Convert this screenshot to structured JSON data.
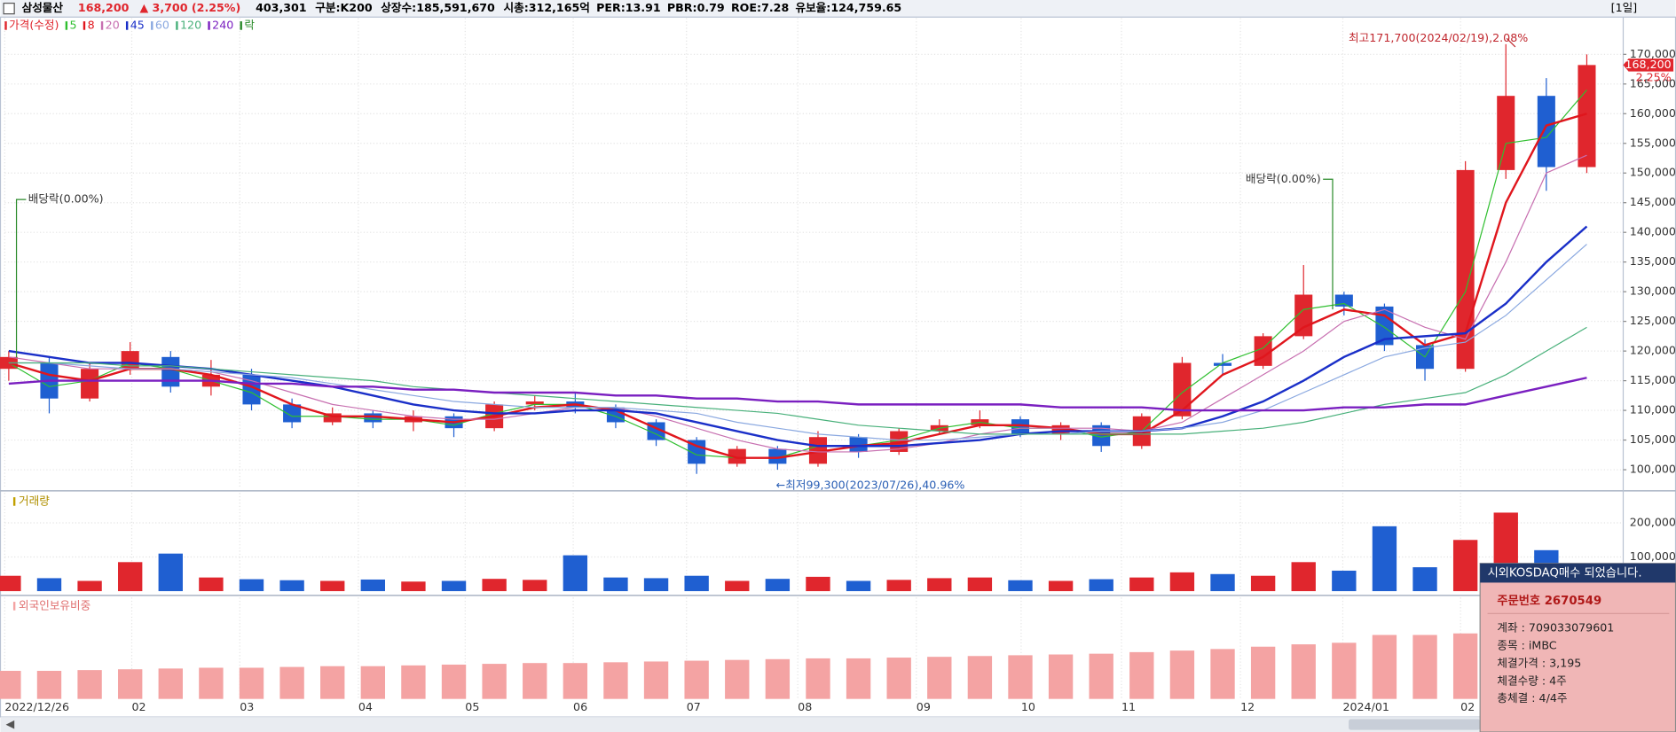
{
  "header": {
    "name": "삼성물산",
    "price": "168,200",
    "change": "▲ 3,700 (2.25%)",
    "volume": "403,301",
    "sector": "구분:K200",
    "shares": "상장수:185,591,670",
    "market_cap": "시총:312,165억",
    "per": "PER:13.91",
    "pbr": "PBR:0.79",
    "roe": "ROE:7.28",
    "reserve": "유보율:124,759.65",
    "period": "[1일]"
  },
  "chart_data": [
    {
      "type": "candlestick",
      "legend_title": "가격(수정)",
      "dividend_legend": "락",
      "up_color": "#e0262d",
      "down_color": "#1f5fd1",
      "open": [
        117000,
        118000,
        112000,
        117000,
        119000,
        114000,
        116000,
        111000,
        108000,
        109500,
        108000,
        109000,
        107000,
        111000,
        111500,
        110500,
        108000,
        105000,
        101000,
        103500,
        101000,
        105500,
        103000,
        106500,
        107500,
        108500,
        106000,
        107500,
        104000,
        109000,
        118000,
        117500,
        122500,
        129500,
        127500,
        121000,
        117000,
        150500,
        163000,
        151000
      ],
      "high": [
        120000,
        119000,
        118000,
        121500,
        120000,
        118500,
        117000,
        112000,
        110500,
        110000,
        110000,
        109500,
        111500,
        112500,
        113000,
        111000,
        108500,
        105500,
        104000,
        104000,
        106500,
        106000,
        107000,
        108500,
        110000,
        109000,
        108000,
        108000,
        109500,
        119000,
        119500,
        123000,
        134500,
        130000,
        128000,
        122000,
        152000,
        171700,
        166000,
        170000
      ],
      "low": [
        115000,
        109500,
        111500,
        116000,
        113000,
        112500,
        110000,
        107000,
        107500,
        107000,
        106500,
        105500,
        106500,
        110000,
        109500,
        107000,
        104000,
        99300,
        100500,
        100000,
        100500,
        102000,
        102500,
        106000,
        107000,
        105500,
        105000,
        103000,
        103500,
        108500,
        116000,
        117000,
        122000,
        126000,
        120000,
        115000,
        116500,
        149000,
        147000,
        150000
      ],
      "close": [
        119000,
        112000,
        117000,
        120000,
        114000,
        116000,
        111000,
        108000,
        109500,
        108000,
        109000,
        107000,
        111000,
        111500,
        110500,
        108000,
        105000,
        101000,
        103500,
        101000,
        105500,
        103000,
        106500,
        107500,
        108500,
        106000,
        107500,
        104000,
        109000,
        118000,
        117500,
        122500,
        129500,
        127500,
        121000,
        117000,
        150500,
        163000,
        151000,
        168200
      ],
      "series": [
        {
          "name": "5",
          "color": "#2fbf2f",
          "width": 1,
          "values": [
            118000,
            114000,
            115000,
            118000,
            117000,
            115000,
            113000,
            109000,
            109000,
            108500,
            108500,
            107500,
            109500,
            111000,
            111000,
            109000,
            106000,
            102500,
            102000,
            102000,
            104000,
            104000,
            105000,
            107000,
            108000,
            107000,
            107000,
            105500,
            106500,
            113000,
            118000,
            120500,
            127000,
            128000,
            124000,
            119000,
            130000,
            155000,
            156000,
            164000
          ]
        },
        {
          "name": "8",
          "color": "#e0161d",
          "width": 2,
          "values": [
            118000,
            116000,
            115000,
            117000,
            117000,
            116000,
            114000,
            111000,
            109000,
            109000,
            108500,
            108000,
            109000,
            110500,
            111000,
            110000,
            107000,
            104000,
            102000,
            102000,
            103000,
            104000,
            104500,
            106000,
            107500,
            107500,
            107000,
            106000,
            106000,
            110000,
            116000,
            119000,
            124000,
            127000,
            126000,
            121000,
            123000,
            145000,
            158000,
            160000
          ]
        },
        {
          "name": "20",
          "color": "#c76fb0",
          "width": 1,
          "values": [
            119000,
            118000,
            117000,
            117000,
            117000,
            116500,
            115000,
            113000,
            111000,
            110000,
            109000,
            108500,
            108500,
            109500,
            110500,
            110500,
            109000,
            107000,
            105000,
            103500,
            103000,
            103000,
            103500,
            104500,
            106000,
            107000,
            107000,
            107000,
            106500,
            108000,
            112000,
            116000,
            120000,
            125000,
            127000,
            124000,
            122000,
            135000,
            150000,
            153000
          ]
        },
        {
          "name": "45",
          "color": "#1a2fc8",
          "width": 2,
          "values": [
            120000,
            119000,
            118000,
            118000,
            117500,
            117000,
            116000,
            115000,
            114000,
            112500,
            111000,
            110000,
            109500,
            109500,
            110000,
            110000,
            109500,
            108000,
            106500,
            105000,
            104000,
            104000,
            104000,
            104500,
            105000,
            106000,
            106500,
            106500,
            106500,
            107000,
            109000,
            111500,
            115000,
            119000,
            122000,
            122500,
            123000,
            128000,
            135000,
            141000
          ]
        },
        {
          "name": "60",
          "color": "#8aa8e0",
          "width": 1,
          "values": [
            118000,
            118000,
            117500,
            117000,
            117000,
            116500,
            116000,
            115500,
            114500,
            113500,
            112500,
            111500,
            111000,
            110500,
            110500,
            110500,
            110000,
            109500,
            108000,
            107000,
            106000,
            105500,
            105000,
            105000,
            105500,
            106000,
            106000,
            106500,
            106500,
            107000,
            108000,
            110000,
            113000,
            116000,
            119000,
            120500,
            121500,
            126000,
            132000,
            138000
          ]
        },
        {
          "name": "120",
          "color": "#48b07a",
          "width": 1,
          "values": [
            118000,
            118000,
            118000,
            117500,
            117500,
            117000,
            116500,
            116000,
            115500,
            115000,
            114000,
            113500,
            113000,
            112500,
            112000,
            111500,
            111000,
            110500,
            110000,
            109500,
            108500,
            107500,
            107000,
            106500,
            106000,
            106000,
            106000,
            106000,
            106000,
            106000,
            106500,
            107000,
            108000,
            109500,
            111000,
            112000,
            113000,
            116000,
            120000,
            124000
          ]
        },
        {
          "name": "240",
          "color": "#7a1fc0",
          "width": 2,
          "values": [
            114500,
            115000,
            115000,
            115000,
            115000,
            115000,
            114500,
            114500,
            114000,
            114000,
            113500,
            113500,
            113000,
            113000,
            113000,
            112500,
            112500,
            112000,
            112000,
            111500,
            111500,
            111000,
            111000,
            111000,
            111000,
            111000,
            110500,
            110500,
            110500,
            110000,
            110000,
            110000,
            110000,
            110500,
            110500,
            111000,
            111000,
            112500,
            114000,
            115500
          ]
        }
      ],
      "xlim": [
        -0.1,
        39.9
      ],
      "xticks": [
        {
          "value": -0.1,
          "label": "2022/12/26"
        },
        {
          "value": 3.04,
          "label": "02"
        },
        {
          "value": 5.71,
          "label": "03"
        },
        {
          "value": 8.64,
          "label": "04"
        },
        {
          "value": 11.28,
          "label": "05"
        },
        {
          "value": 13.95,
          "label": "06"
        },
        {
          "value": 16.75,
          "label": "07"
        },
        {
          "value": 19.5,
          "label": "08"
        },
        {
          "value": 22.43,
          "label": "09"
        },
        {
          "value": 25.02,
          "label": "10"
        },
        {
          "value": 27.5,
          "label": "11"
        },
        {
          "value": 30.44,
          "label": "12"
        },
        {
          "value": 32.97,
          "label": "2024/01"
        },
        {
          "value": 35.88,
          "label": "02"
        }
      ],
      "ylim": [
        96800,
        176100
      ],
      "yticks": [
        {
          "value": 100000,
          "label": "100,000"
        },
        {
          "value": 105000,
          "label": "105,000"
        },
        {
          "value": 110000,
          "label": "110,000"
        },
        {
          "value": 115000,
          "label": "115,000"
        },
        {
          "value": 120000,
          "label": "120,000"
        },
        {
          "value": 125000,
          "label": "125,000"
        },
        {
          "value": 130000,
          "label": "130,000"
        },
        {
          "value": 135000,
          "label": "135,000"
        },
        {
          "value": 140000,
          "label": "140,000"
        },
        {
          "value": 145000,
          "label": "145,000"
        },
        {
          "value": 150000,
          "label": "150,000"
        },
        {
          "value": 155000,
          "label": "155,000"
        },
        {
          "value": 160000,
          "label": "160,000"
        },
        {
          "value": 165000,
          "label": "165,000"
        },
        {
          "value": 170000,
          "label": "170,000"
        }
      ],
      "annotations": {
        "high": "최고171,700(2024/02/19),2.08%",
        "low": "←최저99,300(2023/07/26),40.96%",
        "dividend_1": "배당락(0.00%)",
        "dividend_2": "배당락(0.00%)",
        "last_price": "168,200",
        "last_change": "2.25%"
      }
    },
    {
      "type": "bar",
      "title": "거래량",
      "values": [
        45000,
        38000,
        30000,
        85000,
        110000,
        40000,
        35000,
        32000,
        30000,
        34000,
        28000,
        30000,
        36000,
        33000,
        105000,
        40000,
        38000,
        45000,
        30000,
        36000,
        42000,
        30000,
        33000,
        38000,
        40000,
        32000,
        30000,
        35000,
        40000,
        55000,
        50000,
        45000,
        85000,
        60000,
        190000,
        70000,
        150000,
        230000,
        120000,
        60000
      ],
      "ylim": [
        0,
        287500
      ],
      "yticks": [
        {
          "value": 100000,
          "label": "100,000"
        },
        {
          "value": 200000,
          "label": "200,000"
        }
      ]
    },
    {
      "type": "bar",
      "title": "외국인보유비중",
      "color": "#f4a3a3",
      "values": [
        18.3,
        18.3,
        18.35,
        18.4,
        18.45,
        18.5,
        18.5,
        18.55,
        18.6,
        18.6,
        18.65,
        18.7,
        18.75,
        18.8,
        18.8,
        18.85,
        18.9,
        18.95,
        19.0,
        19.05,
        19.1,
        19.1,
        19.15,
        19.2,
        19.25,
        19.3,
        19.35,
        19.4,
        19.5,
        19.6,
        19.7,
        19.85,
        20.0,
        20.1,
        20.6,
        20.6,
        20.7,
        21.1,
        21.4,
        21.6
      ],
      "ylim": [
        16.5,
        23
      ]
    }
  ],
  "popup": {
    "title": "시외KOSDAQ매수 되었습니다.",
    "order": "주문번호 2670549",
    "lines": [
      "계좌 : 709033079601",
      "종목 : iMBC",
      "체결가격 : 3,195",
      "체결수량 : 4주",
      "총체결 : 4/4주"
    ]
  }
}
